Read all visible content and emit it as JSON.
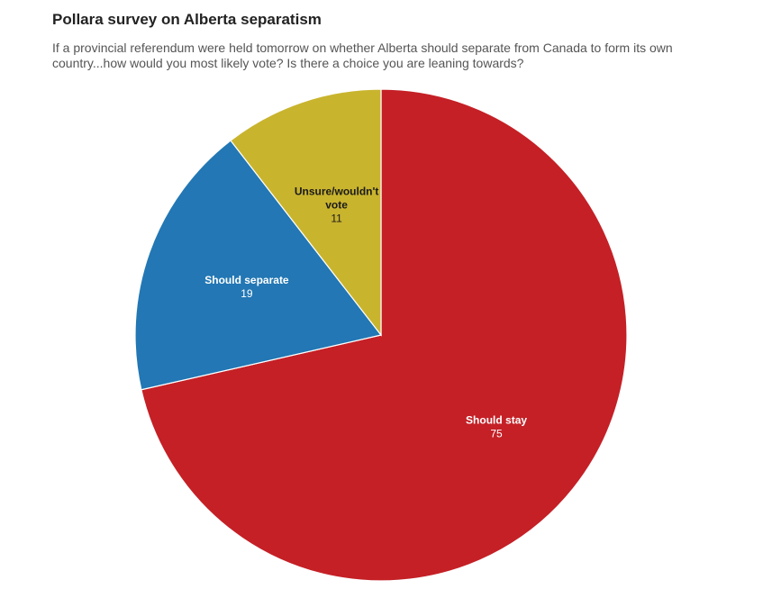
{
  "chart_data": {
    "type": "pie",
    "title": "Pollara survey on Alberta separatism",
    "subtitle": "If a provincial referendum were held tomorrow on whether Alberta should separate from Canada to form its own country...how would you most likely vote? Is there a choice you are leaning towards?",
    "slices": [
      {
        "label": "Should stay",
        "value": 75,
        "color": "#c42026",
        "label_color": "#ffffff"
      },
      {
        "label": "Should separate",
        "value": 19,
        "color": "#2277b4",
        "label_color": "#ffffff"
      },
      {
        "label": "Unsure/wouldn't vote",
        "value": 11,
        "color": "#c9b42e",
        "label_color": "#1a1a1a"
      }
    ]
  }
}
